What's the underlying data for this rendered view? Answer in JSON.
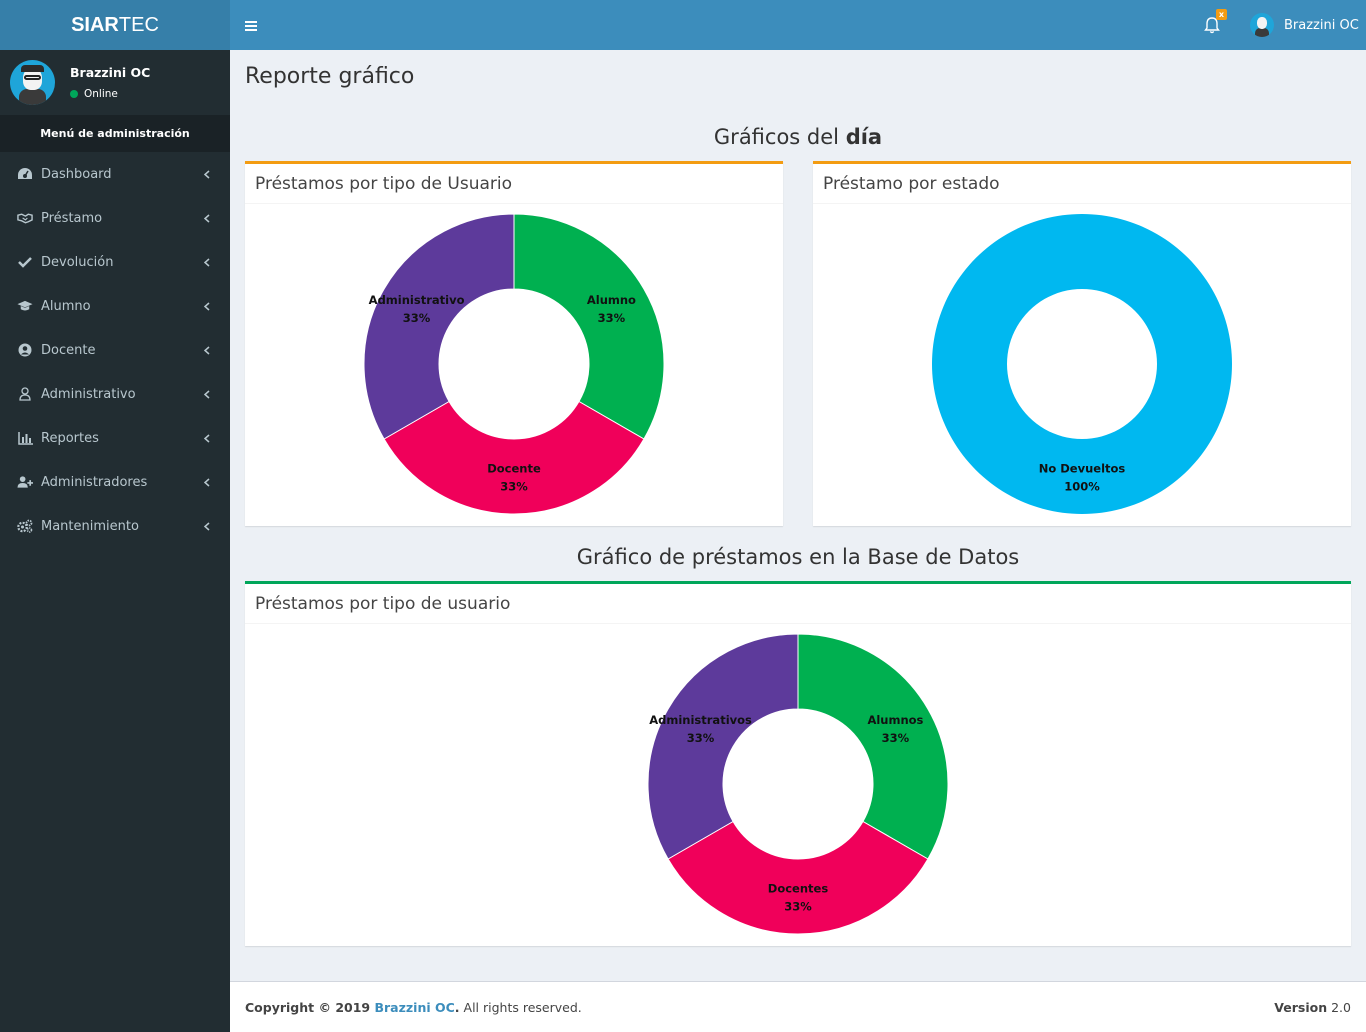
{
  "app": {
    "logo_bold": "SIAR",
    "logo_rest": "TEC"
  },
  "user": {
    "name": "Brazzini OC",
    "status": "Online"
  },
  "sidebar": {
    "header": "Menú de administración",
    "items": [
      {
        "label": "Dashboard",
        "icon": "dashboard-icon"
      },
      {
        "label": "Préstamo",
        "icon": "handshake-icon"
      },
      {
        "label": "Devolución",
        "icon": "check-icon"
      },
      {
        "label": "Alumno",
        "icon": "graduation-cap-icon"
      },
      {
        "label": "Docente",
        "icon": "user-circle-icon"
      },
      {
        "label": "Administrativo",
        "icon": "user-icon"
      },
      {
        "label": "Reportes",
        "icon": "bar-chart-icon"
      },
      {
        "label": "Administradores",
        "icon": "user-plus-icon"
      },
      {
        "label": "Mantenimiento",
        "icon": "cogs-icon"
      }
    ]
  },
  "topbar": {
    "notification_count": "x",
    "username": "Brazzini OC"
  },
  "page": {
    "title": "Reporte gráfico",
    "section1_title_normal": "Gráficos del ",
    "section1_title_bold": "día",
    "section2_title": "Gráfico de préstamos en la Base de Datos"
  },
  "boxes": {
    "box1_title": "Préstamos por tipo de Usuario",
    "box2_title": "Préstamo por estado",
    "box3_title": "Préstamos por tipo de usuario"
  },
  "colors": {
    "green": "#00b050",
    "crimson": "#f0005a",
    "purple": "#5d3a9b",
    "sky": "#00b8f0",
    "orange_border": "#f39c12",
    "green_border": "#00a65a"
  },
  "chart_data": [
    {
      "type": "pie",
      "title": "Préstamos por tipo de Usuario",
      "labels": [
        "Alumno",
        "Docente",
        "Administrativo"
      ],
      "values": [
        33,
        33,
        33
      ],
      "display": [
        "33%",
        "33%",
        "33%"
      ],
      "colors": [
        "#00b050",
        "#f0005a",
        "#5d3a9b"
      ]
    },
    {
      "type": "pie",
      "title": "Préstamo por estado",
      "labels": [
        "No Devueltos"
      ],
      "values": [
        100
      ],
      "display": [
        "100%"
      ],
      "colors": [
        "#00b8f0"
      ]
    },
    {
      "type": "pie",
      "title": "Préstamos por tipo de usuario",
      "labels": [
        "Alumnos",
        "Docentes",
        "Administrativos"
      ],
      "values": [
        33,
        33,
        33
      ],
      "display": [
        "33%",
        "33%",
        "33%"
      ],
      "colors": [
        "#00b050",
        "#f0005a",
        "#5d3a9b"
      ]
    }
  ],
  "footer": {
    "copyright": "Copyright © 2019 ",
    "brand": "Brazzini OC",
    "rights": ". All rights reserved.",
    "version_label": "Version",
    "version": "2.0"
  }
}
